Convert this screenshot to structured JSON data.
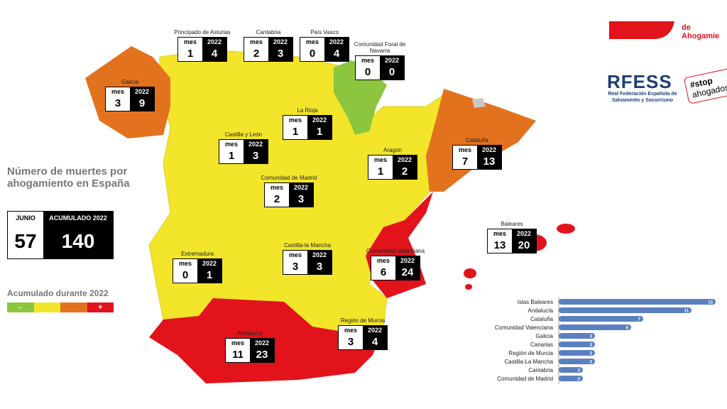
{
  "header": {
    "org_text": "de Ahogamie",
    "logo": "RFESS",
    "logo_subtitle": "Real Federación Española de Salvamento y Socorrismo",
    "campaign_top": "#stop",
    "campaign_bottom": "ahogados"
  },
  "summary": {
    "title": "Número de muertes por ahogamiento en España",
    "month_label": "JUNIO",
    "month_value": 57,
    "total_label": "ACUMULADO 2022",
    "total_value": 140
  },
  "legend": {
    "title": "Acumulado durante 2022",
    "low": "-",
    "high": "+"
  },
  "region_box": {
    "mes_label": "mes",
    "year_label": "2022"
  },
  "regions": [
    {
      "label": "Principado de Asturias",
      "mes": 1,
      "total": 4
    },
    {
      "label": "Cantabria",
      "mes": 2,
      "total": 3
    },
    {
      "label": "País Vasco",
      "mes": 0,
      "total": 4
    },
    {
      "label": "Comunidad Foral de Navarra",
      "mes": 0,
      "total": 0
    },
    {
      "label": "Galicia",
      "mes": 3,
      "total": 9
    },
    {
      "label": "La Rioja",
      "mes": 1,
      "total": 1
    },
    {
      "label": "Castilla y León",
      "mes": 1,
      "total": 3
    },
    {
      "label": "Aragón",
      "mes": 1,
      "total": 2
    },
    {
      "label": "Cataluña",
      "mes": 7,
      "total": 13
    },
    {
      "label": "Comunidad de Madrid",
      "mes": 2,
      "total": 3
    },
    {
      "label": "Baleares",
      "mes": 13,
      "total": 20
    },
    {
      "label": "Extremadura",
      "mes": 0,
      "total": 1
    },
    {
      "label": "Castilla-la Mancha",
      "mes": 3,
      "total": 3
    },
    {
      "label": "Comunidad Valenciana",
      "mes": 6,
      "total": 24
    },
    {
      "label": "Región de Murcia",
      "mes": 3,
      "total": 4
    },
    {
      "label": "Andalucía",
      "mes": 11,
      "total": 23
    }
  ],
  "chart_data": {
    "type": "hbar",
    "color": "#5b80c0",
    "categories": [
      "Islas Baleares",
      "Andalucía",
      "Cataluña",
      "Comunidad Valenciana",
      "Galicia",
      "Canarias",
      "Región de Murcia",
      "Castilla-La Mancha",
      "Cantabria",
      "Comunidad de Madrid"
    ],
    "values": [
      13,
      11,
      7,
      6,
      3,
      3,
      3,
      3,
      2,
      2
    ],
    "xlim": [
      0,
      13
    ]
  }
}
